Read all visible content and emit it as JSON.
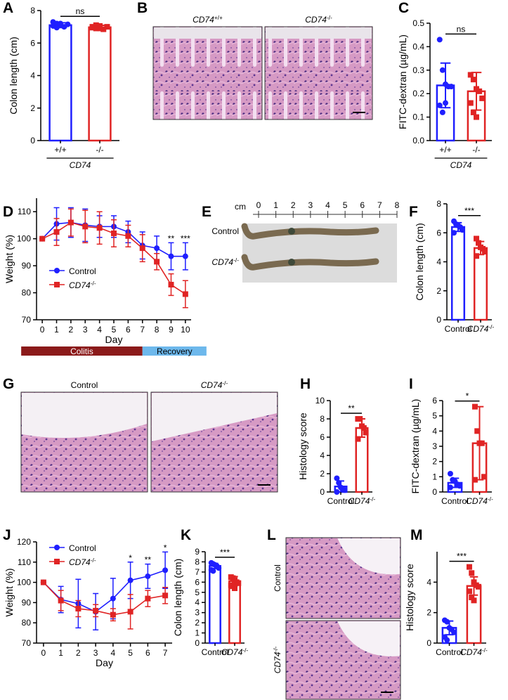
{
  "chart_data": [
    {
      "panel": "A",
      "type": "bar",
      "ylabel": "Colon length (cm)",
      "ylim": [
        0,
        8
      ],
      "yticks": [
        0,
        2,
        4,
        6,
        8
      ],
      "categories": [
        "+/+",
        "-/-"
      ],
      "group_label": "CD74",
      "colors": [
        "#1f1fff",
        "#e02424"
      ],
      "markers": [
        "circle",
        "square"
      ],
      "values": [
        7.1,
        6.97
      ],
      "errors": [
        0.15,
        0.12
      ],
      "points": [
        [
          7.3,
          7.2,
          7.1,
          7.0,
          7.15,
          7.05,
          6.95,
          7.2
        ],
        [
          7.0,
          6.9,
          7.05,
          6.85,
          7.0,
          6.95,
          7.1,
          6.9
        ]
      ],
      "annotation": "ns"
    },
    {
      "panel": "C",
      "type": "bar",
      "ylabel": "FITC-dextran (µg/mL)",
      "ylim": [
        0,
        0.5
      ],
      "yticks": [
        {
          "value": 0,
          "label": "0.0"
        },
        0.1,
        0.2,
        0.3,
        0.4,
        0.5
      ],
      "categories": [
        "+/+",
        "-/-"
      ],
      "group_label": "CD74",
      "colors": [
        "#1f1fff",
        "#e02424"
      ],
      "markers": [
        "circle",
        "square"
      ],
      "values": [
        0.235,
        0.21
      ],
      "errors": [
        0.095,
        0.08
      ],
      "points": [
        [
          0.43,
          0.3,
          0.24,
          0.23,
          0.23,
          0.15,
          0.12,
          0.16
        ],
        [
          0.28,
          0.26,
          0.22,
          0.21,
          0.18,
          0.16,
          0.12,
          0.1
        ]
      ],
      "annotation": "ns"
    },
    {
      "panel": "D",
      "type": "line",
      "ylabel": "Weight (%)",
      "xlabel": "Day",
      "xlim": [
        -0.4,
        10.4
      ],
      "xticks": [
        0,
        1,
        2,
        3,
        4,
        5,
        6,
        7,
        8,
        9,
        10
      ],
      "ylim": [
        70,
        115
      ],
      "yticks": [
        70,
        80,
        90,
        100,
        110
      ],
      "legend": "lower left",
      "x": [
        0,
        1,
        2,
        3,
        4,
        5,
        6,
        7,
        8,
        9,
        10
      ],
      "series": [
        {
          "name": "Control",
          "color": "#1f1fff",
          "marker": "circle",
          "values": [
            100,
            105.5,
            106,
            105,
            104.5,
            104.5,
            102.5,
            97.5,
            96.5,
            93.5,
            93.5
          ],
          "errors": [
            0,
            6,
            5.5,
            6,
            4,
            4,
            4,
            5,
            4.5,
            5,
            5
          ]
        },
        {
          "name": {
            "text": "CD74",
            "sup": "-/-"
          },
          "color": "#e02424",
          "marker": "square",
          "values": [
            100,
            102.5,
            106,
            104.5,
            104,
            102,
            101,
            96.5,
            91.5,
            83,
            79.5
          ],
          "errors": [
            0,
            5,
            5,
            6,
            6,
            5,
            4,
            5,
            3,
            4,
            5
          ]
        }
      ],
      "annotations": [
        {
          "x": 9,
          "text": "**"
        },
        {
          "x": 10,
          "text": "***"
        }
      ],
      "phases": [
        {
          "label": "Colitis",
          "start": 0,
          "end": 7,
          "color": "#8b1a1a"
        },
        {
          "label": "Recovery",
          "start": 7,
          "end": 10,
          "color": "#6db8ec"
        }
      ]
    },
    {
      "panel": "F",
      "type": "bar",
      "ylabel": "Colon length (cm)",
      "ylim": [
        0,
        8
      ],
      "yticks": [
        0,
        2,
        4,
        6,
        8
      ],
      "categories": [
        "Control",
        {
          "text": "CD74",
          "sup": "-/-"
        }
      ],
      "colors": [
        "#1f1fff",
        "#e02424"
      ],
      "markers": [
        "circle",
        "square"
      ],
      "values": [
        6.4,
        4.95
      ],
      "errors": [
        0.3,
        0.45
      ],
      "points": [
        [
          6.8,
          6.6,
          6.5,
          6.4,
          6.2,
          6.0
        ],
        [
          5.6,
          5.3,
          5.0,
          4.9,
          4.7,
          4.4
        ]
      ],
      "annotation": "***"
    },
    {
      "panel": "H",
      "type": "bar",
      "ylabel": "Histology score",
      "ylim": [
        0,
        10
      ],
      "yticks": [
        0,
        2,
        4,
        6,
        8,
        10
      ],
      "categories": [
        "Control",
        {
          "text": "CD74",
          "sup": "-/-"
        }
      ],
      "colors": [
        "#1f1fff",
        "#e02424"
      ],
      "markers": [
        "circle",
        "square"
      ],
      "values": [
        0.6,
        7.0
      ],
      "errors": [
        0.6,
        1.0
      ],
      "points": [
        [
          1.5,
          1.0,
          0.5,
          0.3,
          0.2,
          0.0
        ],
        [
          8.0,
          8.0,
          7.2,
          7.0,
          6.5,
          5.8
        ]
      ],
      "annotation": "**"
    },
    {
      "panel": "I",
      "type": "bar",
      "ylabel": "FITC-dextran (µg/mL)",
      "ylim": [
        0,
        6
      ],
      "yticks": [
        0,
        1,
        2,
        3,
        4,
        5,
        6
      ],
      "categories": [
        "Control",
        {
          "text": "CD74",
          "sup": "-/-"
        }
      ],
      "colors": [
        "#1f1fff",
        "#e02424"
      ],
      "markers": [
        "circle",
        "square"
      ],
      "values": [
        0.6,
        3.2
      ],
      "errors": [
        0.3,
        2.4
      ],
      "points": [
        [
          1.2,
          0.8,
          0.7,
          0.5,
          0.4,
          0.3
        ],
        [
          5.6,
          4.0,
          3.2,
          3.2,
          1.0,
          0.8
        ]
      ],
      "annotation": "*"
    },
    {
      "panel": "J",
      "type": "line",
      "ylabel": "Weight (%)",
      "xlabel": "Day",
      "xlim": [
        -0.4,
        7.4
      ],
      "xticks": [
        0,
        1,
        2,
        3,
        4,
        5,
        6,
        7
      ],
      "ylim": [
        70,
        120
      ],
      "yticks": [
        70,
        80,
        90,
        100,
        110,
        120
      ],
      "legend": "upper left",
      "x": [
        0,
        1,
        2,
        3,
        4,
        5,
        6,
        7
      ],
      "series": [
        {
          "name": "Control",
          "color": "#1f1fff",
          "marker": "circle",
          "values": [
            100,
            91.5,
            89.5,
            85.5,
            92,
            101,
            103,
            106
          ],
          "errors": [
            0,
            6.5,
            12,
            9,
            10,
            9,
            6,
            9
          ]
        },
        {
          "name": {
            "text": "CD74",
            "sup": "-/-"
          },
          "color": "#e02424",
          "marker": "square",
          "values": [
            100,
            91,
            87,
            86,
            84,
            85.5,
            92,
            93.5
          ],
          "errors": [
            0,
            5,
            4,
            3,
            3,
            8.5,
            4,
            4
          ]
        }
      ],
      "annotations": [
        {
          "x": 5,
          "text": "*"
        },
        {
          "x": 6,
          "text": "**"
        },
        {
          "x": 7,
          "text": "*"
        }
      ]
    },
    {
      "panel": "K",
      "type": "bar",
      "ylabel": "Colon length (cm)",
      "ylim": [
        0,
        9
      ],
      "yticks": [
        0,
        1,
        2,
        3,
        4,
        5,
        6,
        7,
        8,
        9
      ],
      "categories": [
        "Control",
        {
          "text": "CD74",
          "sup": "-/-"
        }
      ],
      "colors": [
        "#1f1fff",
        "#e02424"
      ],
      "markers": [
        "circle",
        "square"
      ],
      "values": [
        7.6,
        6.1
      ],
      "errors": [
        0.25,
        0.45
      ],
      "points": [
        [
          7.9,
          7.8,
          7.7,
          7.6,
          7.4,
          7.2,
          7.1
        ],
        [
          6.5,
          6.4,
          6.2,
          6.0,
          5.9,
          5.7,
          5.6,
          5.4
        ]
      ],
      "annotation": "***"
    },
    {
      "panel": "M",
      "type": "bar",
      "ylabel": "Histology score",
      "ylim": [
        0,
        6
      ],
      "yticks": [
        0,
        2,
        4
      ],
      "categories": [
        "Control",
        {
          "text": "CD74",
          "sup": "-/-"
        }
      ],
      "colors": [
        "#1f1fff",
        "#e02424"
      ],
      "markers": [
        "circle",
        "square"
      ],
      "values": [
        1.0,
        3.75
      ],
      "errors": [
        0.45,
        0.6
      ],
      "points": [
        [
          1.5,
          1.4,
          1.0,
          0.9,
          0.7,
          0.4,
          0.2
        ],
        [
          5.0,
          4.6,
          4.0,
          3.8,
          3.7,
          3.4,
          3.0,
          2.8
        ]
      ],
      "annotation": "***"
    }
  ],
  "figures": [
    {
      "panel": "B",
      "images": [
        {
          "label": {
            "text": "CD74",
            "sup": "+/+"
          }
        },
        {
          "label": {
            "text": "CD74",
            "sup": "-/-"
          }
        }
      ]
    },
    {
      "panel": "E",
      "ruler_unit": "cm",
      "ruler_ticks": [
        "0",
        "1",
        "2",
        "3",
        "4",
        "5",
        "6",
        "7",
        "8"
      ],
      "rows": [
        "Control",
        {
          "text": "CD74",
          "sup": "-/-"
        }
      ]
    },
    {
      "panel": "G",
      "images": [
        {
          "label": "Control"
        },
        {
          "label": {
            "text": "CD74",
            "sup": "-/-"
          }
        }
      ]
    },
    {
      "panel": "L",
      "images": [
        {
          "label": "Control"
        },
        {
          "label": {
            "text": "CD74",
            "sup": "-/-"
          }
        }
      ]
    }
  ]
}
